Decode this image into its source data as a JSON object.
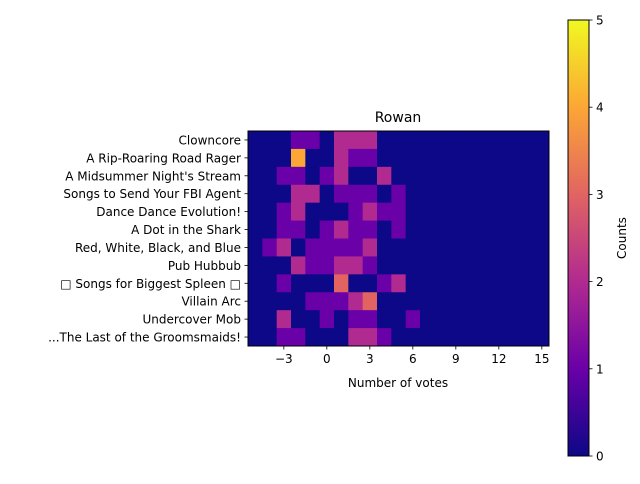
{
  "chart_data": {
    "type": "heatmap",
    "title": "Rowan",
    "xlabel": "Number of votes",
    "ylabel": "",
    "x_bin_start": -5.5,
    "x_bin_width": 1,
    "x_range": [
      -5.5,
      15.5
    ],
    "x_ticks": [
      -3,
      0,
      3,
      6,
      9,
      12,
      15
    ],
    "x_tick_labels": [
      "−3",
      "0",
      "3",
      "6",
      "9",
      "12",
      "15"
    ],
    "categories": [
      "Clowncore",
      "A Rip-Roaring Road Rager",
      "A Midsummer Night's Stream",
      "Songs to Send Your FBI Agent",
      "Dance Dance Evolution!",
      "A Dot in the Shark",
      "Red, White, Black, and Blue",
      "Pub Hubbub",
      "□ Songs for Biggest Spleen □",
      "Villain Arc",
      "Undercover Mob",
      "...The Last of the Groomsmaids!"
    ],
    "values": [
      [
        0,
        0,
        0,
        1,
        1,
        0,
        2,
        2,
        2,
        0,
        0,
        0,
        0,
        0,
        0,
        0,
        0,
        0,
        0,
        0,
        0
      ],
      [
        0,
        0,
        0,
        4,
        0,
        0,
        2,
        1,
        1,
        0,
        0,
        0,
        0,
        0,
        0,
        0,
        0,
        0,
        0,
        0,
        0
      ],
      [
        0,
        0,
        1,
        1,
        0,
        1,
        2,
        0,
        0,
        2,
        0,
        0,
        0,
        0,
        0,
        0,
        0,
        0,
        0,
        0,
        0
      ],
      [
        0,
        0,
        0,
        2,
        2,
        0,
        1,
        1,
        1,
        0,
        1,
        0,
        0,
        0,
        0,
        0,
        0,
        0,
        0,
        0,
        0
      ],
      [
        0,
        0,
        1,
        2,
        0,
        0,
        0,
        1,
        2,
        1,
        1,
        0,
        0,
        0,
        0,
        0,
        0,
        0,
        0,
        0,
        0
      ],
      [
        0,
        0,
        1,
        1,
        0,
        1,
        2,
        1,
        1,
        0,
        1,
        0,
        0,
        0,
        0,
        0,
        0,
        0,
        0,
        0,
        0
      ],
      [
        0,
        1,
        2,
        0,
        1,
        1,
        1,
        1,
        2,
        0,
        0,
        0,
        0,
        0,
        0,
        0,
        0,
        0,
        0,
        0,
        0
      ],
      [
        0,
        0,
        0,
        2,
        1,
        1,
        2,
        2,
        1,
        0,
        0,
        0,
        0,
        0,
        0,
        0,
        0,
        0,
        0,
        0,
        0
      ],
      [
        0,
        0,
        1,
        0,
        0,
        0,
        3,
        0,
        0,
        1,
        2,
        0,
        0,
        0,
        0,
        0,
        0,
        0,
        0,
        0,
        0
      ],
      [
        0,
        0,
        0,
        0,
        1,
        1,
        1,
        2,
        3,
        0,
        0,
        0,
        0,
        0,
        0,
        0,
        0,
        0,
        0,
        0,
        0
      ],
      [
        0,
        0,
        2,
        0,
        0,
        1,
        0,
        1,
        1,
        0,
        0,
        1,
        0,
        0,
        0,
        0,
        0,
        0,
        0,
        0,
        0
      ],
      [
        0,
        0,
        1,
        1,
        0,
        0,
        0,
        2,
        2,
        1,
        0,
        0,
        0,
        0,
        0,
        0,
        0,
        0,
        0,
        0,
        0
      ]
    ],
    "color_scale": {
      "name": "plasma",
      "vmin": 0,
      "vmax": 5
    },
    "colorbar": {
      "label": "Counts",
      "ticks": [
        0,
        1,
        2,
        3,
        4,
        5
      ],
      "tick_labels": [
        "0",
        "1",
        "2",
        "3",
        "4",
        "5"
      ]
    },
    "colors": [
      "#0d0887",
      "#6a00a8",
      "#b12a90",
      "#e16462",
      "#fca636",
      "#f0f921"
    ],
    "grid": false,
    "legend": "colorbar-right"
  }
}
